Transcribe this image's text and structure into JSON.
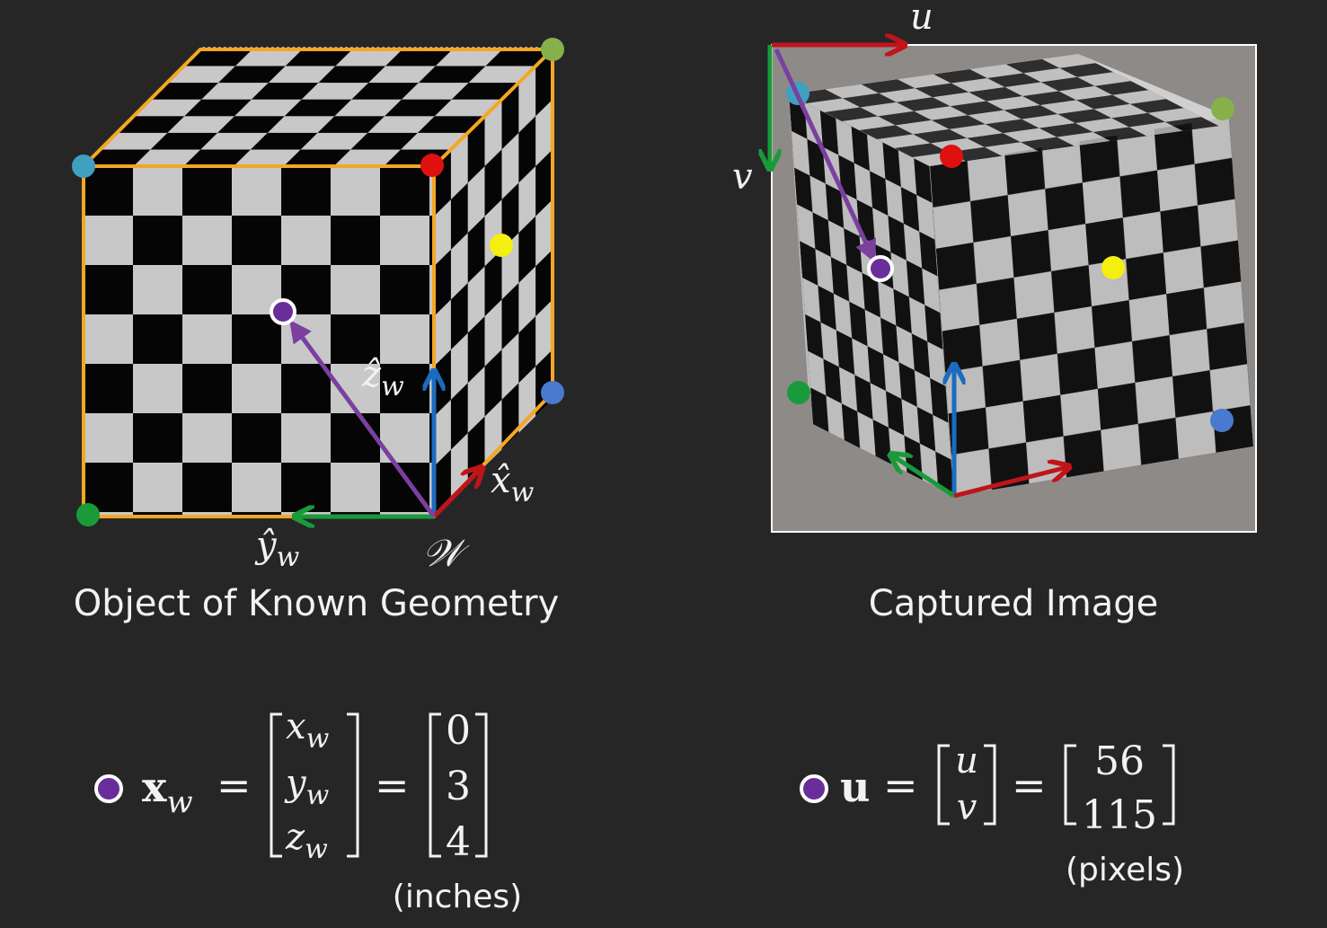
{
  "left_panel": {
    "caption": "Object of Known Geometry",
    "axis_labels": {
      "z": "ẑ",
      "x": "x̂",
      "y": "ŷ",
      "subscript": "w",
      "origin": "𝒲"
    }
  },
  "right_panel": {
    "caption": "Captured Image",
    "axis_labels": {
      "u": "u",
      "v": "v"
    }
  },
  "equation_left": {
    "lhs": "x",
    "lhs_sub": "w",
    "equals": "=",
    "vector_symbols": [
      "x",
      "y",
      "z"
    ],
    "vector_sub": "w",
    "values": [
      "0",
      "3",
      "4"
    ],
    "unit": "(inches)"
  },
  "equation_right": {
    "lhs": "u",
    "equals": "=",
    "vector_symbols": [
      "u",
      "v"
    ],
    "values": [
      "56",
      "115"
    ],
    "unit": "(pixels)"
  },
  "colors": {
    "background": "#262626",
    "edge": "#f5a623",
    "x_axis": "#c0141a",
    "y_axis": "#1a9a3a",
    "z_axis": "#1a6cc0",
    "vector": "#7b3fa0",
    "point": "#6a2e9a",
    "dot_cyan": "#3fa0c0",
    "dot_red": "#e01010",
    "dot_yellow": "#f5ef10",
    "dot_olive": "#86b04a",
    "dot_blue": "#4a7ad0",
    "dot_green": "#1a9a3a"
  }
}
